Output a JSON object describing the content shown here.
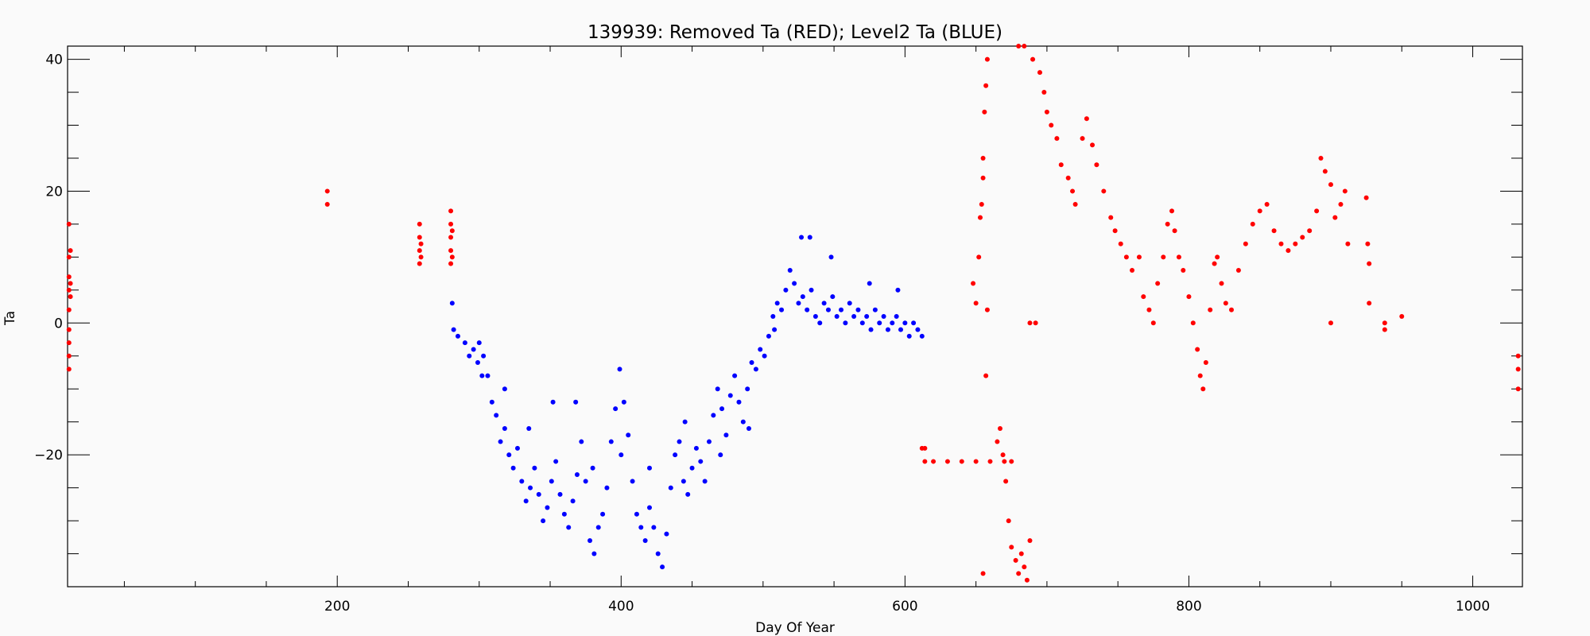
{
  "chart_data": {
    "type": "scatter",
    "title": "139939: Removed Ta (RED); Level2 Ta (BLUE)",
    "xlabel": "Day Of Year",
    "ylabel": "Ta",
    "xlim": [
      10,
      1035
    ],
    "ylim": [
      -40,
      42
    ],
    "x_ticks": [
      200,
      400,
      600,
      800,
      1000
    ],
    "y_ticks": [
      -20,
      0,
      20,
      40
    ],
    "x_minor_step": 50,
    "y_minor_step": 5,
    "grid": false,
    "colors": {
      "removed": "#ff0000",
      "level2": "#0000ff"
    },
    "series": [
      {
        "name": "Removed Ta (RED)",
        "color": "#ff0000",
        "points": [
          [
            11,
            -7
          ],
          [
            11,
            -5
          ],
          [
            11,
            -3
          ],
          [
            11,
            -1
          ],
          [
            11,
            2
          ],
          [
            11,
            5
          ],
          [
            11,
            7
          ],
          [
            11,
            10
          ],
          [
            11,
            15
          ],
          [
            12,
            6
          ],
          [
            12,
            4
          ],
          [
            12,
            11
          ],
          [
            193,
            18
          ],
          [
            193,
            20
          ],
          [
            258,
            15
          ],
          [
            258,
            13
          ],
          [
            258,
            11
          ],
          [
            258,
            9
          ],
          [
            259,
            12
          ],
          [
            259,
            10
          ],
          [
            280,
            17
          ],
          [
            280,
            15
          ],
          [
            280,
            13
          ],
          [
            280,
            11
          ],
          [
            280,
            9
          ],
          [
            281,
            14
          ],
          [
            281,
            10
          ],
          [
            612,
            -19
          ],
          [
            614,
            -19
          ],
          [
            614,
            -21
          ],
          [
            620,
            -21
          ],
          [
            630,
            -21
          ],
          [
            640,
            -21
          ],
          [
            650,
            -21
          ],
          [
            660,
            -21
          ],
          [
            670,
            -21
          ],
          [
            675,
            -21
          ],
          [
            648,
            6
          ],
          [
            650,
            3
          ],
          [
            652,
            10
          ],
          [
            654,
            18
          ],
          [
            655,
            25
          ],
          [
            656,
            32
          ],
          [
            657,
            36
          ],
          [
            658,
            40
          ],
          [
            657,
            -8
          ],
          [
            658,
            2
          ],
          [
            653,
            16
          ],
          [
            655,
            22
          ],
          [
            655,
            -38
          ],
          [
            665,
            -18
          ],
          [
            667,
            -16
          ],
          [
            669,
            -20
          ],
          [
            671,
            -24
          ],
          [
            673,
            -30
          ],
          [
            675,
            -34
          ],
          [
            678,
            -36
          ],
          [
            680,
            -38
          ],
          [
            682,
            -35
          ],
          [
            684,
            -37
          ],
          [
            686,
            -39
          ],
          [
            688,
            -33
          ],
          [
            688,
            0
          ],
          [
            692,
            0
          ],
          [
            680,
            42
          ],
          [
            684,
            42
          ],
          [
            690,
            40
          ],
          [
            695,
            38
          ],
          [
            698,
            35
          ],
          [
            700,
            32
          ],
          [
            703,
            30
          ],
          [
            707,
            28
          ],
          [
            710,
            24
          ],
          [
            715,
            22
          ],
          [
            718,
            20
          ],
          [
            720,
            18
          ],
          [
            725,
            28
          ],
          [
            728,
            31
          ],
          [
            732,
            27
          ],
          [
            735,
            24
          ],
          [
            740,
            20
          ],
          [
            745,
            16
          ],
          [
            748,
            14
          ],
          [
            752,
            12
          ],
          [
            756,
            10
          ],
          [
            760,
            8
          ],
          [
            765,
            10
          ],
          [
            768,
            4
          ],
          [
            772,
            2
          ],
          [
            775,
            0
          ],
          [
            778,
            6
          ],
          [
            782,
            10
          ],
          [
            785,
            15
          ],
          [
            788,
            17
          ],
          [
            790,
            14
          ],
          [
            793,
            10
          ],
          [
            796,
            8
          ],
          [
            800,
            4
          ],
          [
            803,
            0
          ],
          [
            806,
            -4
          ],
          [
            808,
            -8
          ],
          [
            810,
            -10
          ],
          [
            812,
            -6
          ],
          [
            815,
            2
          ],
          [
            818,
            9
          ],
          [
            820,
            10
          ],
          [
            823,
            6
          ],
          [
            826,
            3
          ],
          [
            830,
            2
          ],
          [
            835,
            8
          ],
          [
            840,
            12
          ],
          [
            845,
            15
          ],
          [
            850,
            17
          ],
          [
            855,
            18
          ],
          [
            860,
            14
          ],
          [
            865,
            12
          ],
          [
            870,
            11
          ],
          [
            875,
            12
          ],
          [
            880,
            13
          ],
          [
            885,
            14
          ],
          [
            890,
            17
          ],
          [
            893,
            25
          ],
          [
            896,
            23
          ],
          [
            900,
            21
          ],
          [
            903,
            16
          ],
          [
            907,
            18
          ],
          [
            910,
            20
          ],
          [
            912,
            12
          ],
          [
            900,
            0
          ],
          [
            925,
            19
          ],
          [
            926,
            12
          ],
          [
            927,
            9
          ],
          [
            927,
            3
          ],
          [
            938,
            0
          ],
          [
            938,
            -1
          ],
          [
            950,
            1
          ],
          [
            1032,
            -5
          ],
          [
            1032,
            -7
          ],
          [
            1032,
            -10
          ]
        ]
      },
      {
        "name": "Level2 Ta (BLUE)",
        "color": "#0000ff",
        "points": [
          [
            281,
            3
          ],
          [
            282,
            -1
          ],
          [
            285,
            -2
          ],
          [
            290,
            -3
          ],
          [
            293,
            -5
          ],
          [
            296,
            -4
          ],
          [
            300,
            -3
          ],
          [
            303,
            -5
          ],
          [
            306,
            -8
          ],
          [
            309,
            -12
          ],
          [
            312,
            -14
          ],
          [
            315,
            -18
          ],
          [
            318,
            -16
          ],
          [
            321,
            -20
          ],
          [
            324,
            -22
          ],
          [
            327,
            -19
          ],
          [
            330,
            -24
          ],
          [
            333,
            -27
          ],
          [
            336,
            -25
          ],
          [
            339,
            -22
          ],
          [
            342,
            -26
          ],
          [
            345,
            -30
          ],
          [
            348,
            -28
          ],
          [
            351,
            -24
          ],
          [
            354,
            -21
          ],
          [
            357,
            -26
          ],
          [
            360,
            -29
          ],
          [
            363,
            -31
          ],
          [
            366,
            -27
          ],
          [
            369,
            -23
          ],
          [
            372,
            -18
          ],
          [
            375,
            -24
          ],
          [
            378,
            -33
          ],
          [
            381,
            -35
          ],
          [
            384,
            -31
          ],
          [
            387,
            -29
          ],
          [
            390,
            -25
          ],
          [
            393,
            -18
          ],
          [
            396,
            -13
          ],
          [
            399,
            -7
          ],
          [
            402,
            -12
          ],
          [
            405,
            -17
          ],
          [
            408,
            -24
          ],
          [
            411,
            -29
          ],
          [
            414,
            -31
          ],
          [
            417,
            -33
          ],
          [
            420,
            -28
          ],
          [
            423,
            -31
          ],
          [
            426,
            -35
          ],
          [
            429,
            -37
          ],
          [
            432,
            -32
          ],
          [
            435,
            -25
          ],
          [
            438,
            -20
          ],
          [
            441,
            -18
          ],
          [
            444,
            -24
          ],
          [
            447,
            -26
          ],
          [
            450,
            -22
          ],
          [
            453,
            -19
          ],
          [
            456,
            -21
          ],
          [
            459,
            -24
          ],
          [
            462,
            -18
          ],
          [
            465,
            -14
          ],
          [
            468,
            -10
          ],
          [
            471,
            -13
          ],
          [
            474,
            -17
          ],
          [
            477,
            -11
          ],
          [
            480,
            -8
          ],
          [
            483,
            -12
          ],
          [
            486,
            -15
          ],
          [
            489,
            -10
          ],
          [
            492,
            -6
          ],
          [
            495,
            -7
          ],
          [
            498,
            -4
          ],
          [
            501,
            -5
          ],
          [
            504,
            -2
          ],
          [
            507,
            1
          ],
          [
            510,
            3
          ],
          [
            513,
            2
          ],
          [
            516,
            5
          ],
          [
            519,
            8
          ],
          [
            522,
            6
          ],
          [
            525,
            3
          ],
          [
            528,
            4
          ],
          [
            531,
            2
          ],
          [
            534,
            5
          ],
          [
            537,
            1
          ],
          [
            540,
            0
          ],
          [
            543,
            3
          ],
          [
            546,
            2
          ],
          [
            549,
            4
          ],
          [
            552,
            1
          ],
          [
            555,
            2
          ],
          [
            558,
            0
          ],
          [
            561,
            3
          ],
          [
            564,
            1
          ],
          [
            567,
            2
          ],
          [
            570,
            0
          ],
          [
            573,
            1
          ],
          [
            576,
            -1
          ],
          [
            579,
            2
          ],
          [
            582,
            0
          ],
          [
            585,
            1
          ],
          [
            588,
            -1
          ],
          [
            591,
            0
          ],
          [
            594,
            1
          ],
          [
            597,
            -1
          ],
          [
            600,
            0
          ],
          [
            603,
            -2
          ],
          [
            606,
            0
          ],
          [
            609,
            -1
          ],
          [
            612,
            -2
          ],
          [
            299,
            -6
          ],
          [
            302,
            -8
          ],
          [
            318,
            -10
          ],
          [
            335,
            -16
          ],
          [
            352,
            -12
          ],
          [
            368,
            -12
          ],
          [
            380,
            -22
          ],
          [
            400,
            -20
          ],
          [
            420,
            -22
          ],
          [
            445,
            -15
          ],
          [
            470,
            -20
          ],
          [
            490,
            -16
          ],
          [
            508,
            -1
          ],
          [
            527,
            13
          ],
          [
            533,
            13
          ],
          [
            548,
            10
          ],
          [
            575,
            6
          ],
          [
            595,
            5
          ]
        ]
      }
    ]
  }
}
